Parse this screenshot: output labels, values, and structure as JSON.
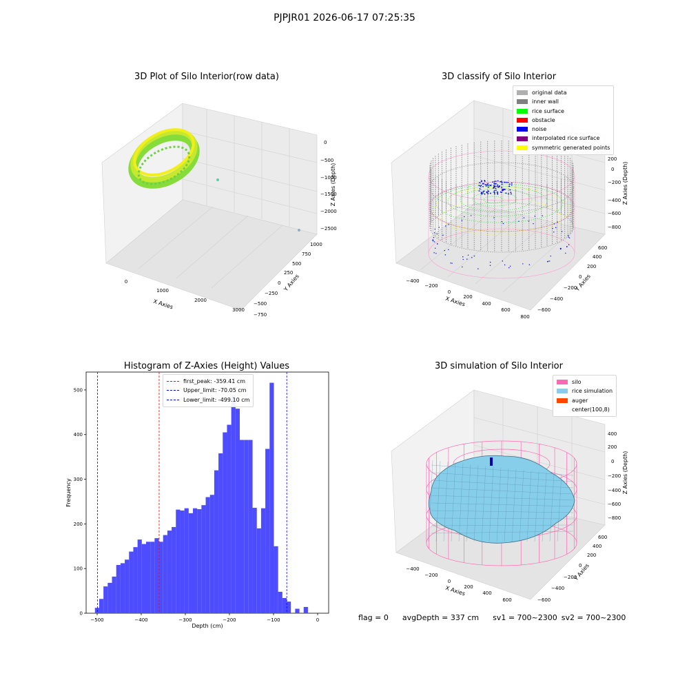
{
  "suptitle": "PJPJR01 2026-06-17 07:25:35",
  "footer": {
    "flag": "flag = 0",
    "avg_depth": "avgDepth = 337 cm",
    "sv1": "sv1 = 700~2300",
    "sv2": "sv2 = 700~2300"
  },
  "chart_data": [
    {
      "type": "scatter",
      "title": "3D Plot of Silo Interior(row data)",
      "xlabel": "X Axies",
      "ylabel": "Y Axies",
      "zlabel": "Z Axies (Depth)",
      "x_ticks": [
        "0",
        "1000",
        "2000",
        "3000"
      ],
      "y_ticks": [
        "−750",
        "−500",
        "−250",
        "0",
        "250",
        "500",
        "750",
        "1000"
      ],
      "z_ticks": [
        "0",
        "−500",
        "−1000",
        "−1500",
        "−2000",
        "−2500"
      ],
      "outliers": [
        {
          "x": 1100,
          "y": 250,
          "z": -1100
        },
        {
          "x": 3300,
          "y": 800,
          "z": -2500
        }
      ],
      "colors": {
        "ring_inner": "#f2ee1a",
        "ring_outer": "#86dc3a",
        "outlier": "#5fc9a8"
      }
    },
    {
      "type": "scatter",
      "title": "3D classify of Silo Interior",
      "xlabel": "X Axies",
      "ylabel": "Y Axies",
      "zlabel": "Z Axies (Depth)",
      "x_ticks": [
        "−400",
        "−200",
        "0",
        "200",
        "400",
        "600",
        "800"
      ],
      "y_ticks": [
        "−600",
        "−400",
        "−200",
        "0",
        "200",
        "400",
        "600"
      ],
      "z_ticks": [
        "200",
        "0",
        "−200",
        "−400",
        "−600",
        "−800"
      ],
      "legend": [
        {
          "label": "original data",
          "color": "#b0b0b0"
        },
        {
          "label": "inner wall",
          "color": "#808080"
        },
        {
          "label": "rice surface",
          "color": "#00ff00"
        },
        {
          "label": "obstacle",
          "color": "#ff0000"
        },
        {
          "label": "noise",
          "color": "#0000ee"
        },
        {
          "label": "interpolated rice surface",
          "color": "#800080"
        },
        {
          "label": "symmetric generated points",
          "color": "#ffff00"
        }
      ]
    },
    {
      "type": "bar",
      "title": "Histogram of Z-Axies (Height) Values",
      "xlabel": "Depth (cm)",
      "ylabel": "Frequency",
      "xlim": [
        -525,
        25
      ],
      "ylim": [
        0,
        540
      ],
      "x_ticks": [
        -500,
        -400,
        -300,
        -200,
        -100,
        0
      ],
      "y_ticks": [
        0,
        100,
        200,
        300,
        400,
        500
      ],
      "bin_start": -505,
      "bin_width": 9.66,
      "values": [
        12,
        32,
        60,
        68,
        82,
        108,
        112,
        120,
        138,
        148,
        165,
        155,
        160,
        160,
        168,
        160,
        175,
        185,
        193,
        232,
        230,
        235,
        224,
        235,
        233,
        242,
        260,
        265,
        320,
        358,
        405,
        422,
        488,
        458,
        388,
        388,
        388,
        236,
        190,
        235,
        368,
        516,
        150,
        48,
        34,
        26,
        0,
        10,
        0,
        14
      ],
      "bar_color": "#4d4dff",
      "lines": [
        {
          "label": "first_peak: -359.41 cm",
          "x": -359.41,
          "color": "#ff0000"
        },
        {
          "label": "Upper_limit: -70.05 cm",
          "x": -70.05,
          "color": "#0000ff"
        },
        {
          "label": "Lower_limit: -499.10 cm",
          "x": -499.1,
          "color": "#0000ff"
        }
      ]
    },
    {
      "type": "area",
      "title": "3D simulation of Silo Interior",
      "xlabel": "X Axies",
      "ylabel": "Y Axies",
      "zlabel": "Z Axies (Depth)",
      "x_ticks": [
        "−400",
        "−200",
        "0",
        "200",
        "400",
        "600"
      ],
      "y_ticks": [
        "−600",
        "−400",
        "−200",
        "0",
        "200",
        "400",
        "600"
      ],
      "z_ticks": [
        "400",
        "200",
        "0",
        "−200",
        "−400",
        "−600",
        "−800"
      ],
      "legend": [
        {
          "label": "silo",
          "color": "#ff69b4"
        },
        {
          "label": "rice simulation",
          "color": "#87ceeb"
        },
        {
          "label": "auger",
          "color": "#ff4500"
        },
        {
          "label": "center(100,8)",
          "color": "#ffffff"
        }
      ]
    }
  ]
}
